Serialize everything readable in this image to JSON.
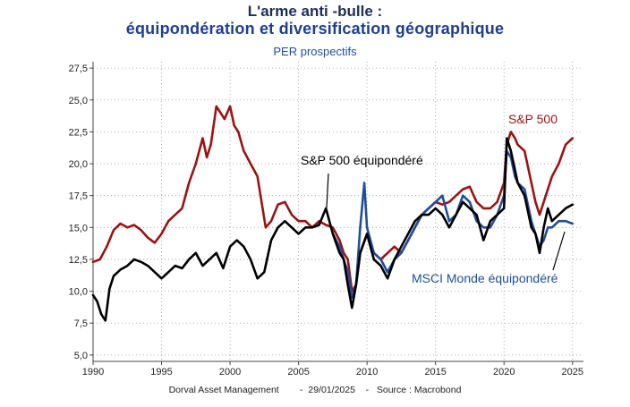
{
  "title": "L'arme anti   -bulle :",
  "subtitle": "équipondération et diversification géographique",
  "subtitle2": "PER prospectifs",
  "footer": "Dorval Asset Management        -  29/01/2025    -   Source : Macrobond",
  "colors": {
    "sp500": "#9b1313",
    "msci_ew": "#1f4e9c",
    "sp500_ew": "#000000",
    "axis": "#444444",
    "grid": "#999999"
  },
  "chart_data": {
    "type": "line",
    "title": "L'arme anti   -bulle :",
    "subtitle": "équipondération et diversification géographique",
    "ylabel": "PER prospectifs",
    "xlim": [
      1990,
      2025.8
    ],
    "ylim": [
      4.5,
      28
    ],
    "x_ticks": [
      1990,
      1995,
      2000,
      2005,
      2010,
      2015,
      2020,
      2025
    ],
    "x_tick_labels": [
      "1990",
      "1995",
      "2000",
      "2005",
      "2010",
      "2015",
      "2020",
      "2025"
    ],
    "y_ticks": [
      5,
      7.5,
      10,
      12.5,
      15,
      17.5,
      20,
      22.5,
      25,
      27.5
    ],
    "y_tick_labels": [
      "5,0",
      "7,5",
      "10,0",
      "12,5",
      "15,0",
      "17,5",
      "20,0",
      "22,5",
      "25,0",
      "27,5"
    ],
    "grid": true,
    "series": [
      {
        "name": "S&P 500",
        "color": "#9b1313",
        "x": [
          1990,
          1990.5,
          1991,
          1991.5,
          1992,
          1992.5,
          1993,
          1993.5,
          1994,
          1994.5,
          1995,
          1995.5,
          1996,
          1996.5,
          1997,
          1997.5,
          1998,
          1998.3,
          1998.6,
          1999,
          1999.3,
          1999.6,
          2000,
          2000.3,
          2000.6,
          2001,
          2001.5,
          2002,
          2002.3,
          2002.6,
          2003,
          2003.5,
          2004,
          2004.5,
          2005,
          2005.5,
          2006,
          2006.5,
          2007,
          2007.5,
          2008,
          2008.3,
          2008.6,
          2008.9,
          2009.2,
          2009.5,
          2010,
          2010.5,
          2011,
          2011.5,
          2012,
          2012.5,
          2013,
          2013.5,
          2014,
          2014.5,
          2015,
          2015.5,
          2016,
          2016.5,
          2017,
          2017.5,
          2018,
          2018.5,
          2019,
          2019.5,
          2020,
          2020.2,
          2020.5,
          2020.8,
          2021,
          2021.5,
          2022,
          2022.3,
          2022.6,
          2022.9,
          2023.2,
          2023.5,
          2024,
          2024.5,
          2025
        ],
        "y": [
          12.3,
          12.5,
          13.5,
          14.8,
          15.3,
          15.0,
          15.2,
          14.8,
          14.2,
          13.8,
          14.5,
          15.5,
          16.0,
          16.5,
          18.5,
          20.0,
          22.0,
          20.5,
          21.5,
          24.5,
          24.0,
          23.5,
          24.5,
          23.0,
          22.5,
          21.0,
          20.0,
          19.0,
          17.0,
          15.0,
          15.5,
          16.8,
          17.0,
          16.0,
          15.5,
          15.5,
          15.0,
          15.5,
          15.2,
          15.0,
          14.0,
          13.0,
          12.5,
          10.0,
          10.5,
          13.0,
          14.5,
          13.0,
          12.5,
          13.0,
          13.5,
          13.0,
          14.0,
          15.0,
          16.0,
          16.5,
          17.0,
          16.8,
          17.0,
          17.5,
          18.0,
          18.2,
          17.0,
          16.5,
          16.5,
          17.0,
          18.5,
          21.5,
          22.5,
          22.0,
          21.5,
          21.0,
          18.5,
          17.0,
          16.0,
          17.0,
          18.0,
          19.0,
          20.0,
          21.5,
          22.0
        ]
      },
      {
        "name": "MSCI Monde équipondéré",
        "color": "#1f4e9c",
        "x": [
          2007.5,
          2008,
          2008.3,
          2008.6,
          2008.9,
          2009.2,
          2009.5,
          2009.8,
          2010,
          2010.5,
          2011,
          2011.5,
          2012,
          2012.5,
          2013,
          2013.5,
          2014,
          2014.5,
          2015,
          2015.5,
          2016,
          2016.5,
          2017,
          2017.5,
          2018,
          2018.5,
          2019,
          2019.5,
          2020,
          2020.2,
          2020.5,
          2020.8,
          2021,
          2021.5,
          2022,
          2022.3,
          2022.6,
          2022.9,
          2023.2,
          2023.5,
          2024,
          2024.5,
          2025
        ],
        "y": [
          14.5,
          13.5,
          12.5,
          11.5,
          9.5,
          10.5,
          15.0,
          18.5,
          15.0,
          13.0,
          12.5,
          11.5,
          12.5,
          13.0,
          14.0,
          15.0,
          16.0,
          16.5,
          17.0,
          17.5,
          15.5,
          16.0,
          17.5,
          17.0,
          15.5,
          15.0,
          15.0,
          16.0,
          17.5,
          21.0,
          20.5,
          19.0,
          18.5,
          18.0,
          15.5,
          14.5,
          13.5,
          14.0,
          15.0,
          15.0,
          15.5,
          15.5,
          15.3
        ]
      },
      {
        "name": "S&P 500 équipondéré",
        "color": "#000000",
        "x": [
          1990,
          1990.3,
          1990.6,
          1990.9,
          1991.2,
          1991.5,
          1992,
          1992.5,
          1993,
          1993.5,
          1994,
          1994.5,
          1995,
          1995.5,
          1996,
          1996.5,
          1997,
          1997.5,
          1998,
          1998.5,
          1999,
          1999.5,
          2000,
          2000.5,
          2001,
          2001.5,
          2002,
          2002.5,
          2003,
          2003.5,
          2004,
          2004.5,
          2005,
          2005.5,
          2006,
          2006.5,
          2007,
          2007.5,
          2008,
          2008.3,
          2008.6,
          2008.9,
          2009.2,
          2009.5,
          2010,
          2010.5,
          2011,
          2011.5,
          2012,
          2012.5,
          2013,
          2013.5,
          2014,
          2014.5,
          2015,
          2015.5,
          2016,
          2016.5,
          2017,
          2017.5,
          2018,
          2018.5,
          2019,
          2019.5,
          2020,
          2020.2,
          2020.5,
          2020.8,
          2021,
          2021.5,
          2022,
          2022.3,
          2022.6,
          2022.9,
          2023.2,
          2023.5,
          2024,
          2024.5,
          2025
        ],
        "y": [
          9.7,
          9.2,
          8.2,
          7.7,
          10.2,
          11.2,
          11.7,
          12.0,
          12.5,
          12.3,
          12.0,
          11.5,
          11.0,
          11.5,
          12.0,
          11.8,
          12.5,
          13.0,
          12.0,
          12.5,
          13.0,
          11.8,
          13.5,
          14.0,
          13.5,
          12.5,
          11.0,
          11.5,
          14.0,
          15.0,
          15.5,
          15.0,
          14.5,
          15.0,
          15.0,
          15.2,
          16.5,
          14.5,
          13.0,
          12.5,
          10.5,
          8.7,
          10.5,
          13.0,
          14.5,
          12.5,
          12.0,
          11.0,
          12.5,
          13.5,
          14.5,
          15.5,
          16.0,
          16.0,
          16.5,
          16.0,
          15.0,
          16.0,
          17.0,
          16.5,
          16.0,
          14.0,
          15.5,
          16.0,
          16.5,
          22.0,
          21.0,
          19.5,
          18.5,
          17.5,
          15.0,
          14.5,
          13.0,
          15.0,
          16.5,
          15.5,
          16.0,
          16.5,
          16.8
        ]
      }
    ],
    "annotations": [
      {
        "text": "S&P 500",
        "color": "#9b1313"
      },
      {
        "text": "S&P 500 équipondéré",
        "color": "#000000"
      },
      {
        "text": "MSCI Monde équipondéré",
        "color": "#1f4e9c"
      }
    ]
  }
}
